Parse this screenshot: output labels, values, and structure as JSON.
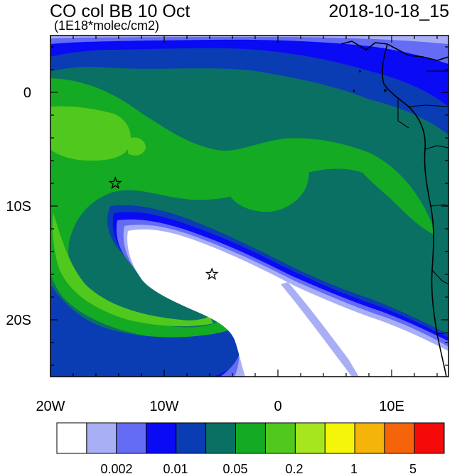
{
  "header": {
    "title": "CO col BB 10 Oct",
    "units": "(1E18*molec/cm2)",
    "date": "2018-10-18_15"
  },
  "axes": {
    "lon_ticks": [
      "20W",
      "10W",
      "0",
      "10E"
    ],
    "lat_ticks": [
      "0",
      "10S",
      "20S"
    ]
  },
  "colorbar": {
    "colors": [
      "#ffffff",
      "#a8aff5",
      "#646cf5",
      "#0a0af5",
      "#0a3cb4",
      "#0a7064",
      "#14aa23",
      "#50c81e",
      "#a5e61e",
      "#f5f50a",
      "#f5b40a",
      "#f5640a",
      "#f50a0a"
    ],
    "labels": [
      "0.002",
      "0.01",
      "0.05",
      "0.2",
      "1",
      "5"
    ]
  },
  "markers": [
    {
      "name": "star-marker-north",
      "lon": -14.3,
      "lat": -8.0
    },
    {
      "name": "star-marker-south",
      "lon": -5.8,
      "lat": -16.0
    }
  ]
}
